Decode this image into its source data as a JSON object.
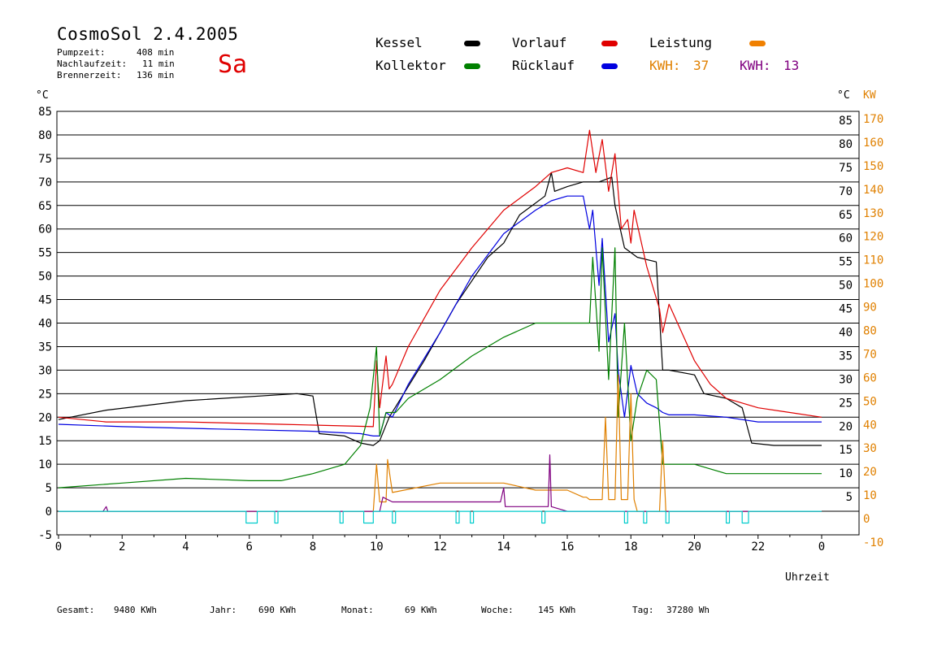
{
  "header": {
    "title": "CosmoSol 2.4.2005",
    "day": "Sa",
    "stats": [
      {
        "label": "Pumpzeit:",
        "value": "408 min"
      },
      {
        "label": "Nachlaufzeit:",
        "value": "11 min"
      },
      {
        "label": "Brennerzeit:",
        "value": "136 min"
      }
    ]
  },
  "legend": {
    "items": [
      {
        "label": "Kessel",
        "color": "#000000"
      },
      {
        "label": "Vorlauf",
        "color": "#e00000"
      },
      {
        "label": "Leistung",
        "color": "#f08000"
      },
      {
        "label": "Kollektor",
        "color": "#008000"
      },
      {
        "label": "Rücklauf",
        "color": "#0000e0"
      }
    ],
    "kwh1_label": "KWH:",
    "kwh1_value": "37",
    "kwh1_color": "#e08000",
    "kwh2_label": "KWH:",
    "kwh2_value": "13",
    "kwh2_color": "#800080"
  },
  "axes": {
    "left_unit": "°C",
    "right_unit": "°C",
    "right_unit2": "KW",
    "xlabel": "Uhrzeit"
  },
  "footer": [
    {
      "label": "Gesamt:",
      "value": "9480 KWh"
    },
    {
      "label": "Jahr:",
      "value": "690 KWh"
    },
    {
      "label": "Monat:",
      "value": "69 KWh"
    },
    {
      "label": "Woche:",
      "value": "145 KWh"
    },
    {
      "label": "Tag:",
      "value": "37280 Wh"
    }
  ],
  "chart_data": {
    "type": "line",
    "x_ticks": [
      "0",
      "2",
      "4",
      "6",
      "8",
      "10",
      "12",
      "14",
      "16",
      "18",
      "20",
      "22",
      "0"
    ],
    "x_range": [
      0,
      24
    ],
    "y_ticks": [
      "-5",
      "0",
      "5",
      "10",
      "15",
      "20",
      "25",
      "30",
      "35",
      "40",
      "45",
      "50",
      "55",
      "60",
      "65",
      "70",
      "75",
      "80",
      "85"
    ],
    "y_ticks_right": [
      "5",
      "10",
      "15",
      "20",
      "25",
      "30",
      "35",
      "40",
      "45",
      "50",
      "55",
      "60",
      "65",
      "70",
      "75",
      "80",
      "85"
    ],
    "kw_ticks": [
      "-10",
      "0",
      "10",
      "20",
      "30",
      "40",
      "50",
      "60",
      "70",
      "80",
      "90",
      "100",
      "110",
      "120",
      "130",
      "140",
      "150",
      "160",
      "170"
    ],
    "ylim": [
      -5,
      85
    ],
    "kw_lim": [
      -10,
      170
    ],
    "grid": "horizontal",
    "series": [
      {
        "name": "Kessel",
        "color": "#000000",
        "x": [
          0,
          1.5,
          4,
          7.5,
          8.0,
          8.2,
          9.0,
          9.5,
          9.9,
          10.1,
          10.4,
          11.5,
          12.5,
          13.5,
          14.0,
          14.5,
          15.3,
          15.5,
          15.6,
          16.0,
          16.5,
          17.0,
          17.4,
          17.5,
          17.8,
          18.2,
          18.8,
          19.0,
          19.2,
          20.0,
          20.3,
          21.0,
          21.5,
          21.8,
          22.5,
          24
        ],
        "y": [
          19.5,
          21.5,
          23.5,
          25,
          24.5,
          16.5,
          16,
          14.5,
          14,
          15,
          20,
          32,
          44,
          54,
          57,
          63,
          67,
          72,
          68,
          69,
          70,
          70,
          71,
          65,
          56,
          54,
          53,
          30,
          30,
          29,
          25,
          24,
          22,
          14.5,
          14,
          14
        ]
      },
      {
        "name": "Vorlauf",
        "color": "#e00000",
        "x": [
          0,
          1.5,
          4,
          7,
          9.9,
          10.0,
          10.1,
          10.3,
          10.4,
          10.5,
          11.0,
          12.0,
          13.0,
          14.0,
          15.0,
          15.5,
          16.0,
          16.5,
          16.7,
          16.9,
          17.1,
          17.3,
          17.5,
          17.7,
          17.9,
          18.0,
          18.1,
          18.5,
          18.9,
          19.0,
          19.2,
          19.6,
          20.0,
          20.5,
          21.0,
          22.0,
          23.0,
          24
        ],
        "y": [
          20,
          19,
          19,
          18.5,
          18,
          32,
          22,
          33,
          26,
          27,
          35,
          47,
          56,
          64,
          69,
          72,
          73,
          72,
          81,
          72,
          79,
          68,
          76,
          60,
          62,
          57,
          64,
          52,
          43,
          38,
          44,
          38,
          32,
          27,
          24,
          22,
          21,
          20
        ]
      },
      {
        "name": "Rücklauf",
        "color": "#0000e0",
        "x": [
          0,
          2,
          5,
          8,
          9.5,
          9.9,
          10.1,
          10.3,
          10.5,
          11.0,
          12.0,
          13.0,
          14.0,
          15.0,
          15.5,
          16.0,
          16.5,
          16.7,
          16.8,
          17.0,
          17.1,
          17.3,
          17.5,
          17.6,
          17.8,
          18.0,
          18.2,
          18.5,
          18.8,
          19.0,
          19.2,
          19.3,
          20.0,
          21.0,
          22.0,
          23.0,
          24
        ],
        "y": [
          18.5,
          18,
          17.5,
          17,
          16.5,
          16,
          16,
          21,
          20,
          27,
          38,
          50,
          59,
          64,
          66,
          67,
          67,
          60,
          64,
          48,
          58,
          36,
          42,
          30,
          20,
          31,
          25,
          23,
          22,
          21,
          20.5,
          20.5,
          20.5,
          20,
          19,
          19,
          19
        ]
      },
      {
        "name": "Kollektor",
        "color": "#008000",
        "x": [
          0,
          2,
          4,
          6,
          7,
          8,
          9,
          9.5,
          9.8,
          10.0,
          10.1,
          10.3,
          10.6,
          11.0,
          12.0,
          13.0,
          14.0,
          15.0,
          16.0,
          16.5,
          16.7,
          16.8,
          17.0,
          17.1,
          17.3,
          17.5,
          17.6,
          17.8,
          18.0,
          18.2,
          18.5,
          18.8,
          19.0,
          19.2,
          19.5,
          20.0,
          21.0,
          22.0,
          23.0,
          24
        ],
        "y": [
          5,
          6,
          7,
          6.5,
          6.5,
          8,
          10,
          14,
          22,
          35,
          16,
          21,
          21,
          24,
          28,
          33,
          37,
          40,
          40,
          40,
          40,
          54,
          34,
          56,
          28,
          56,
          20,
          40,
          15,
          24,
          30,
          28,
          10,
          10,
          10,
          10,
          8,
          8,
          8,
          8
        ]
      },
      {
        "name": "Leistung",
        "color": "#e08000",
        "axis": "kw",
        "x": [
          0,
          9.8,
          9.9,
          10.0,
          10.1,
          10.3,
          10.35,
          10.5,
          12.0,
          14.0,
          15.0,
          16.0,
          16.5,
          16.6,
          16.7,
          16.8,
          17.0,
          17.1,
          17.2,
          17.3,
          17.4,
          17.5,
          17.6,
          17.7,
          17.8,
          17.9,
          18.0,
          18.1,
          18.2,
          18.3,
          18.9,
          19.0,
          19.1,
          19.2,
          24
        ],
        "y": [
          0,
          0,
          0,
          20,
          4,
          4,
          22,
          8,
          12,
          12,
          9,
          9,
          6,
          6,
          5,
          5,
          5,
          5,
          40,
          5,
          5,
          5,
          58,
          5,
          5,
          5,
          50,
          5,
          0,
          0,
          0,
          30,
          0,
          0,
          0
        ]
      },
      {
        "name": "KWH",
        "color": "#800080",
        "axis": "kw",
        "x": [
          0,
          1.4,
          1.5,
          1.55,
          9.8,
          10.1,
          10.2,
          10.5,
          12.0,
          13.9,
          14.0,
          14.05,
          15.0,
          15.4,
          15.45,
          15.5,
          16.0,
          16.5,
          24
        ],
        "y": [
          0,
          0,
          2,
          0,
          0,
          0,
          6,
          4,
          4,
          4,
          10,
          2,
          2,
          2,
          24,
          2,
          0,
          0,
          0
        ]
      },
      {
        "name": "Pumpe",
        "color": "#00cccc",
        "x": [
          0,
          5.9,
          5.9,
          6.25,
          6.25,
          6.8,
          6.8,
          6.9,
          6.9,
          8.85,
          8.85,
          8.95,
          8.95,
          9.6,
          9.6,
          9.9,
          9.9,
          10.5,
          10.5,
          10.6,
          10.6,
          12.5,
          12.5,
          12.6,
          12.6,
          12.95,
          12.95,
          13.05,
          13.05,
          15.2,
          15.2,
          15.3,
          15.3,
          17.8,
          17.8,
          17.9,
          17.9,
          18.4,
          18.4,
          18.5,
          18.5,
          19.1,
          19.1,
          19.2,
          19.2,
          21.0,
          21.0,
          21.1,
          21.1,
          21.5,
          21.5,
          21.7,
          21.7,
          24
        ],
        "y": [
          0,
          0,
          -2.5,
          -2.5,
          0,
          0,
          -2.5,
          -2.5,
          0,
          0,
          -2.5,
          -2.5,
          0,
          0,
          -2.5,
          -2.5,
          0,
          0,
          -2.5,
          -2.5,
          0,
          0,
          -2.5,
          -2.5,
          0,
          0,
          -2.5,
          -2.5,
          0,
          0,
          -2.5,
          -2.5,
          0,
          0,
          -2.5,
          -2.5,
          0,
          0,
          -2.5,
          -2.5,
          0,
          0,
          -2.5,
          -2.5,
          0,
          0,
          -2.5,
          -2.5,
          0,
          0,
          -2.5,
          -2.5,
          0,
          0
        ]
      }
    ]
  }
}
